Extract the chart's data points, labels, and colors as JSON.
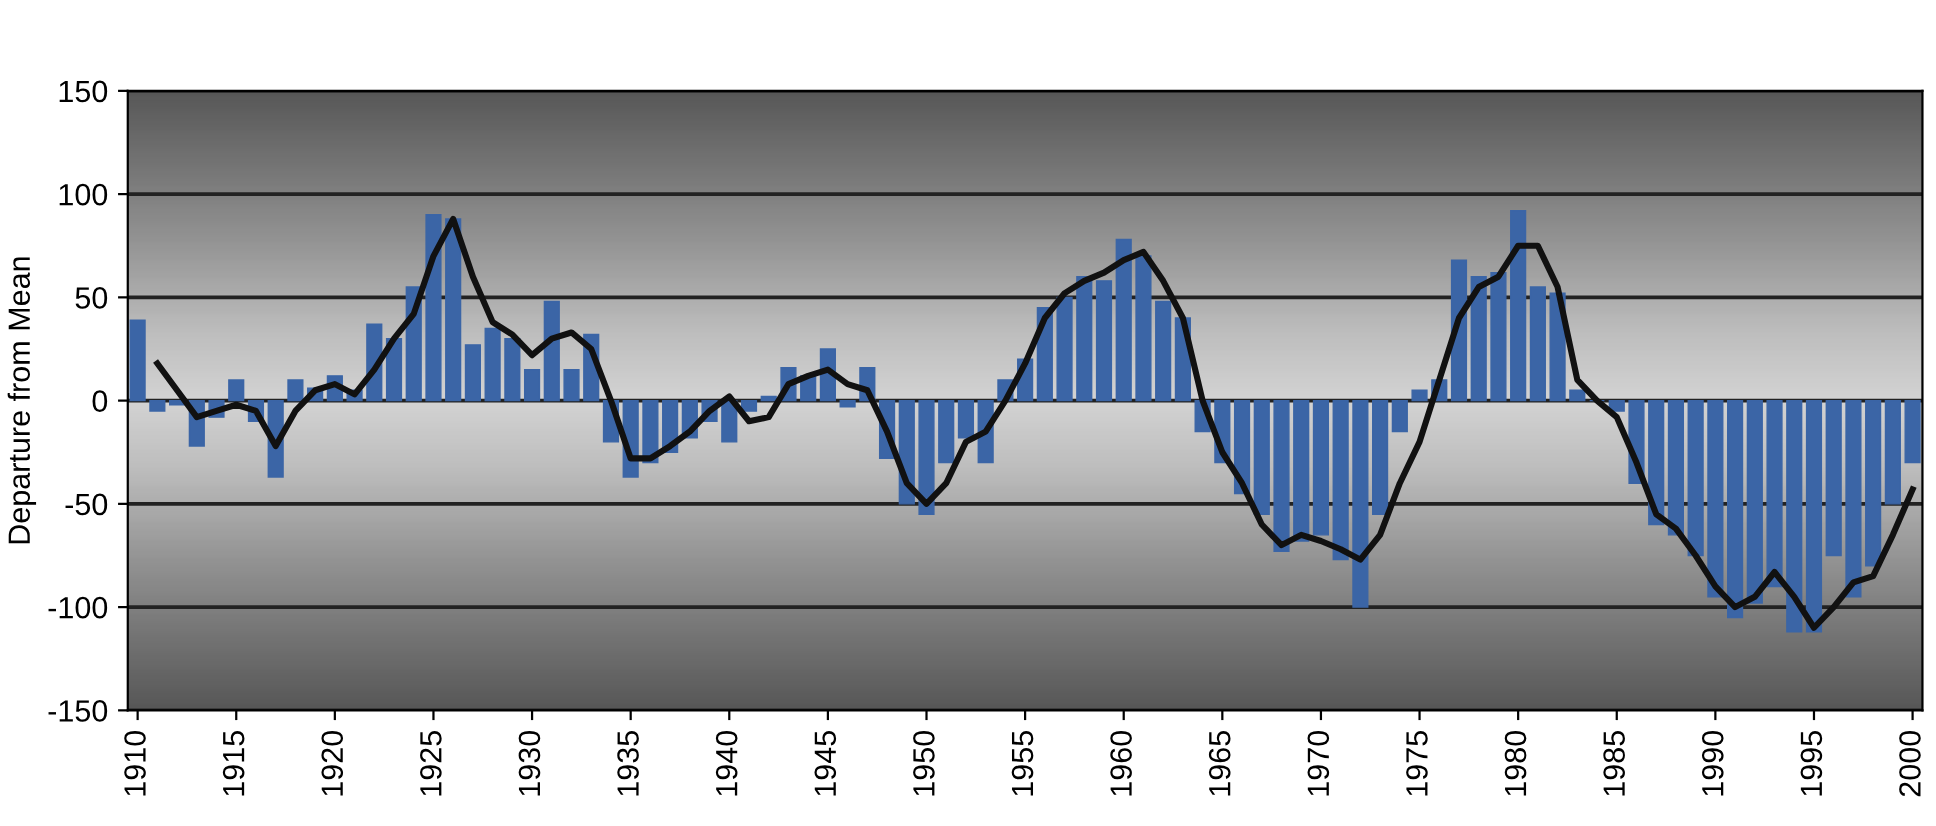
{
  "chart_data": {
    "type": "bar",
    "ylabel": "Departure from Mean",
    "xlim": [
      1909.5,
      2000.5
    ],
    "xticks": [
      1910,
      1915,
      1920,
      1925,
      1930,
      1935,
      1940,
      1945,
      1950,
      1955,
      1960,
      1965,
      1970,
      1975,
      1980,
      1985,
      1990,
      1995,
      2000
    ],
    "ylim": [
      -150,
      150
    ],
    "yticks": [
      -150,
      -100,
      -50,
      0,
      50,
      100,
      150
    ],
    "grid": "y",
    "legend": false,
    "series": [
      {
        "color": "#3b65a6",
        "x": [
          1910,
          1911,
          1912,
          1913,
          1914,
          1915,
          1916,
          1917,
          1918,
          1919,
          1920,
          1921,
          1922,
          1923,
          1924,
          1925,
          1926,
          1927,
          1928,
          1929,
          1930,
          1931,
          1932,
          1933,
          1934,
          1935,
          1936,
          1937,
          1938,
          1939,
          1940,
          1941,
          1942,
          1943,
          1944,
          1945,
          1946,
          1947,
          1948,
          1949,
          1950,
          1951,
          1952,
          1953,
          1954,
          1955,
          1956,
          1957,
          1958,
          1959,
          1960,
          1961,
          1962,
          1963,
          1964,
          1965,
          1966,
          1967,
          1968,
          1969,
          1970,
          1971,
          1972,
          1973,
          1974,
          1975,
          1976,
          1977,
          1978,
          1979,
          1980,
          1981,
          1982,
          1983,
          1984,
          1985,
          1986,
          1987,
          1988,
          1989,
          1990,
          1991,
          1992,
          1993,
          1994,
          1995,
          1996,
          1997,
          1998,
          1999,
          2000
        ],
        "values": [
          39,
          -5,
          -2,
          -22,
          -8,
          10,
          -10,
          -37,
          10,
          6,
          12,
          5,
          37,
          30,
          55,
          90,
          88,
          27,
          35,
          30,
          15,
          48,
          15,
          32,
          -20,
          -37,
          -30,
          -25,
          -18,
          -10,
          -20,
          -5,
          2,
          16,
          12,
          25,
          -3,
          16,
          -28,
          -50,
          -55,
          -30,
          -18,
          -30,
          10,
          20,
          45,
          50,
          60,
          58,
          78,
          70,
          48,
          40,
          -15,
          -30,
          -45,
          -55,
          -73,
          -68,
          -65,
          -77,
          -100,
          -55,
          -15,
          5,
          10,
          68,
          60,
          62,
          92,
          55,
          52,
          5,
          0,
          -5,
          -40,
          -60,
          -65,
          -75,
          -95,
          -105,
          -98,
          -90,
          -112,
          -112,
          -75,
          -95,
          -80,
          -50,
          -30
        ]
      },
      {
        "type": "line",
        "color": "#111111",
        "marker": "none",
        "line_style": "solid",
        "x": [
          1911,
          1912,
          1913,
          1914,
          1915,
          1916,
          1917,
          1918,
          1919,
          1920,
          1921,
          1922,
          1923,
          1924,
          1925,
          1926,
          1927,
          1928,
          1929,
          1930,
          1931,
          1932,
          1933,
          1934,
          1935,
          1936,
          1937,
          1938,
          1939,
          1940,
          1941,
          1942,
          1943,
          1944,
          1945,
          1946,
          1947,
          1948,
          1949,
          1950,
          1951,
          1952,
          1953,
          1954,
          1955,
          1956,
          1957,
          1958,
          1959,
          1960,
          1961,
          1962,
          1963,
          1964,
          1965,
          1966,
          1967,
          1968,
          1969,
          1970,
          1971,
          1972,
          1973,
          1974,
          1975,
          1976,
          1977,
          1978,
          1979,
          1980,
          1981,
          1982,
          1983,
          1984,
          1985,
          1986,
          1987,
          1988,
          1989,
          1990,
          1991,
          1992,
          1993,
          1994,
          1995,
          1996,
          1997,
          1998,
          1999,
          2000
        ],
        "values": [
          18,
          5,
          -8,
          -5,
          -2,
          -5,
          -22,
          -5,
          5,
          8,
          3,
          15,
          30,
          42,
          70,
          88,
          60,
          38,
          32,
          22,
          30,
          33,
          25,
          0,
          -28,
          -28,
          -22,
          -15,
          -5,
          2,
          -10,
          -8,
          8,
          12,
          15,
          8,
          5,
          -15,
          -40,
          -50,
          -40,
          -20,
          -15,
          0,
          18,
          40,
          52,
          58,
          62,
          68,
          72,
          58,
          40,
          0,
          -25,
          -40,
          -60,
          -70,
          -65,
          -68,
          -72,
          -77,
          -65,
          -40,
          -20,
          10,
          40,
          55,
          60,
          75,
          75,
          55,
          10,
          0,
          -8,
          -30,
          -55,
          -62,
          -75,
          -90,
          -100,
          -95,
          -83,
          -95,
          -110,
          -100,
          -88,
          -85,
          -65,
          -43
        ]
      }
    ]
  }
}
